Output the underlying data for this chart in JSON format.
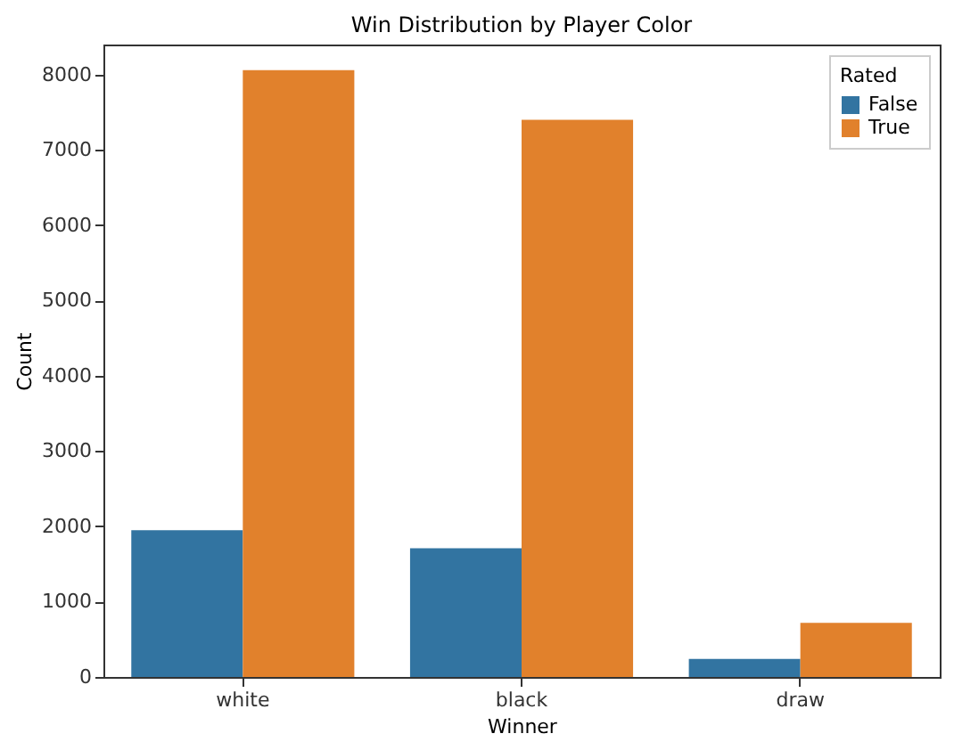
{
  "chart_data": {
    "type": "bar",
    "title": "Win Distribution by Player Color",
    "xlabel": "Winner",
    "ylabel": "Count",
    "legend_title": "Rated",
    "categories": [
      "white",
      "black",
      "draw"
    ],
    "series": [
      {
        "name": "False",
        "color": "#3274a1",
        "values": [
          1950,
          1710,
          240
        ]
      },
      {
        "name": "True",
        "color": "#e1812c",
        "values": [
          8060,
          7400,
          720
        ]
      }
    ],
    "ylim": [
      0,
      8400
    ],
    "yticks": [
      0,
      1000,
      2000,
      3000,
      4000,
      5000,
      6000,
      7000,
      8000
    ],
    "legend": "top right"
  }
}
